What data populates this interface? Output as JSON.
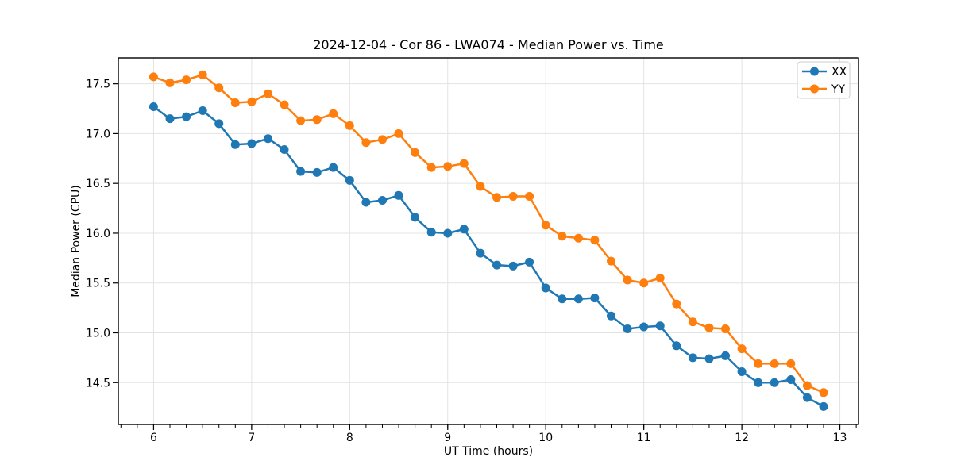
{
  "figure": {
    "title": "2024-12-04 - Cor 86 - LWA074 - Median Power vs. Time",
    "xlabel": "UT Time (hours)",
    "ylabel": "Median Power (CPU)"
  },
  "chart_data": {
    "type": "line",
    "title": "2024-12-04 - Cor 86 - LWA074 - Median Power vs. Time",
    "xlabel": "UT Time (hours)",
    "ylabel": "Median Power (CPU)",
    "xlim": [
      5.64,
      13.19
    ],
    "ylim": [
      14.08,
      17.76
    ],
    "xticks": [
      6,
      7,
      8,
      9,
      10,
      11,
      12,
      13
    ],
    "yticks": [
      14.5,
      15.0,
      15.5,
      16.0,
      16.5,
      17.0,
      17.5
    ],
    "x_minor_step": 0.166667,
    "grid": true,
    "grid_color": "#e3e3e3",
    "legend_position": "upper right",
    "x": [
      6.0,
      6.1667,
      6.3333,
      6.5,
      6.6667,
      6.8333,
      7.0,
      7.1667,
      7.3333,
      7.5,
      7.6667,
      7.8333,
      8.0,
      8.1667,
      8.3333,
      8.5,
      8.6667,
      8.8333,
      9.0,
      9.1667,
      9.3333,
      9.5,
      9.6667,
      9.8333,
      10.0,
      10.1667,
      10.3333,
      10.5,
      10.6667,
      10.8333,
      11.0,
      11.1667,
      11.3333,
      11.5,
      11.6667,
      11.8333,
      12.0,
      12.1667,
      12.3333,
      12.5,
      12.6667,
      12.8333
    ],
    "series": [
      {
        "name": "XX",
        "color": "#1f77b4",
        "values": [
          17.27,
          17.15,
          17.17,
          17.23,
          17.1,
          16.89,
          16.9,
          16.95,
          16.84,
          16.62,
          16.61,
          16.66,
          16.53,
          16.31,
          16.33,
          16.38,
          16.16,
          16.01,
          16.0,
          16.04,
          15.8,
          15.68,
          15.67,
          15.71,
          15.45,
          15.34,
          15.34,
          15.35,
          15.17,
          15.04,
          15.06,
          15.07,
          14.87,
          14.75,
          14.74,
          14.77,
          14.61,
          14.5,
          14.5,
          14.53,
          14.35,
          14.26
        ]
      },
      {
        "name": "YY",
        "color": "#ff7f0e",
        "values": [
          17.57,
          17.51,
          17.54,
          17.59,
          17.46,
          17.31,
          17.32,
          17.4,
          17.29,
          17.13,
          17.14,
          17.2,
          17.08,
          16.91,
          16.94,
          17.0,
          16.81,
          16.66,
          16.67,
          16.7,
          16.47,
          16.36,
          16.37,
          16.37,
          16.08,
          15.97,
          15.95,
          15.93,
          15.72,
          15.53,
          15.5,
          15.55,
          15.29,
          15.11,
          15.05,
          15.04,
          14.84,
          14.69,
          14.69,
          14.69,
          14.47,
          14.4
        ]
      }
    ]
  }
}
